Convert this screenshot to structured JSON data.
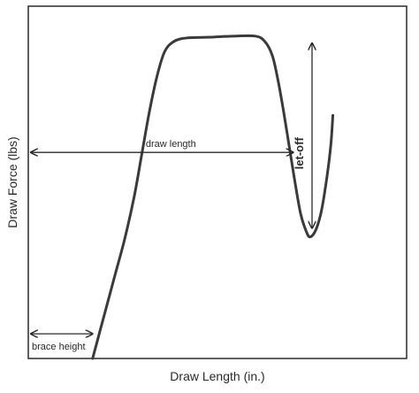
{
  "chart_data": {
    "type": "line",
    "title": "",
    "xlabel": "Draw Length (in.)",
    "ylabel": "Draw Force (lbs)",
    "x_ticks": [],
    "y_ticks": [],
    "grid": false,
    "legend": "none",
    "colors": {
      "curve": "#3a3a3a",
      "frame": "#2a2a2a",
      "arrows": "#2a2a2a"
    },
    "series": [
      {
        "points": [
          [
            0.17,
            0.0
          ],
          [
            0.19,
            0.08
          ],
          [
            0.21,
            0.16
          ],
          [
            0.23,
            0.24
          ],
          [
            0.255,
            0.34
          ],
          [
            0.28,
            0.46
          ],
          [
            0.3,
            0.58
          ],
          [
            0.32,
            0.7
          ],
          [
            0.34,
            0.8
          ],
          [
            0.36,
            0.87
          ],
          [
            0.385,
            0.9
          ],
          [
            0.42,
            0.91
          ],
          [
            0.48,
            0.912
          ],
          [
            0.54,
            0.915
          ],
          [
            0.6,
            0.915
          ],
          [
            0.625,
            0.9
          ],
          [
            0.645,
            0.86
          ],
          [
            0.66,
            0.79
          ],
          [
            0.675,
            0.7
          ],
          [
            0.69,
            0.6
          ],
          [
            0.705,
            0.5
          ],
          [
            0.72,
            0.41
          ],
          [
            0.735,
            0.36
          ],
          [
            0.745,
            0.345
          ],
          [
            0.76,
            0.365
          ],
          [
            0.775,
            0.42
          ],
          [
            0.79,
            0.52
          ],
          [
            0.8,
            0.61
          ],
          [
            0.805,
            0.69
          ]
        ]
      }
    ],
    "annotations": [
      {
        "label": "draw length",
        "type": "double-arrow-horizontal",
        "from": [
          0.0,
          0.585
        ],
        "to": [
          0.7,
          0.585
        ]
      },
      {
        "label": "let-off",
        "type": "double-arrow-vertical",
        "from": [
          0.75,
          0.37
        ],
        "to": [
          0.75,
          0.895
        ]
      },
      {
        "label": "brace height",
        "type": "double-arrow-horizontal",
        "from": [
          0.0,
          0.07
        ],
        "to": [
          0.17,
          0.07
        ]
      }
    ]
  }
}
